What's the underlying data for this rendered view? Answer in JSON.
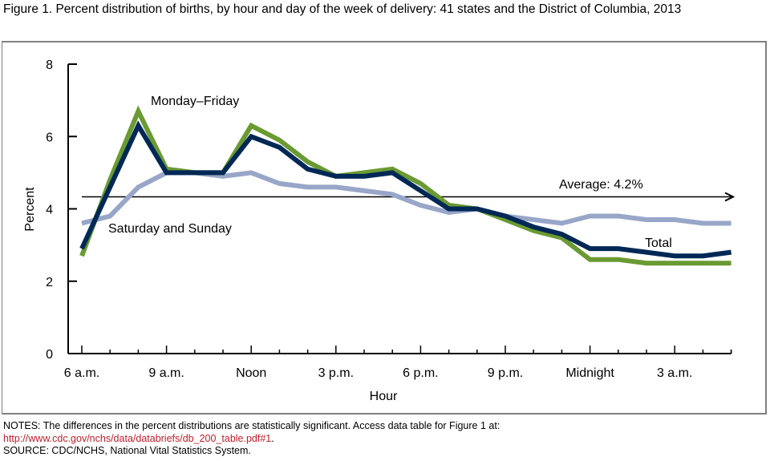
{
  "title": "Figure 1. Percent distribution of births, by hour and day of the week of delivery: 41 states and the District of Columbia, 2013",
  "notes": {
    "line1": "NOTES: The differences in the percent distributions are statistically significant. Access data table for Figure 1 at:",
    "link": "http://www.cdc.gov/nchs/data/databriefs/db_200_table.pdf#1",
    "link_suffix": ".",
    "source": "SOURCE: CDC/NCHS, National Vital Statistics System."
  },
  "colors": {
    "total": "#002856",
    "monday_friday": "#6a9a32",
    "saturday_sunday": "#98a6c8",
    "average": "#000000",
    "link": "#c0202a"
  },
  "chart_data": {
    "type": "line",
    "title": "Figure 1. Percent distribution of births, by hour and day of the week of delivery: 41 states and the District of Columbia, 2013",
    "xlabel": "Hour",
    "ylabel": "Percent",
    "ylim": [
      0,
      8
    ],
    "yticks": [
      0,
      2,
      4,
      6,
      8
    ],
    "x": [
      "6 a.m.",
      "7 a.m.",
      "8 a.m.",
      "9 a.m.",
      "10 a.m.",
      "11 a.m.",
      "Noon",
      "1 p.m.",
      "2 p.m.",
      "3 p.m.",
      "4 p.m.",
      "5 p.m.",
      "6 p.m.",
      "7 p.m.",
      "8 p.m.",
      "9 p.m.",
      "10 p.m.",
      "11 p.m.",
      "Midnight",
      "1 a.m.",
      "2 a.m.",
      "3 a.m.",
      "4 a.m.",
      "5 a.m."
    ],
    "xtick_labels": [
      {
        "index": 0,
        "label": "6 a.m."
      },
      {
        "index": 3,
        "label": "9 a.m."
      },
      {
        "index": 6,
        "label": "Noon"
      },
      {
        "index": 9,
        "label": "3 p.m."
      },
      {
        "index": 12,
        "label": "6 p.m."
      },
      {
        "index": 15,
        "label": "9 p.m."
      },
      {
        "index": 18,
        "label": "Midnight"
      },
      {
        "index": 21,
        "label": "3 a.m."
      }
    ],
    "series": [
      {
        "name": "Saturday and Sunday",
        "key": "saturday_sunday",
        "values": [
          3.6,
          3.8,
          4.6,
          5.0,
          5.0,
          4.9,
          5.0,
          4.7,
          4.6,
          4.6,
          4.5,
          4.4,
          4.1,
          3.9,
          4.0,
          3.8,
          3.7,
          3.6,
          3.8,
          3.8,
          3.7,
          3.7,
          3.6,
          3.6
        ]
      },
      {
        "name": "Monday–Friday",
        "key": "monday_friday",
        "values": [
          2.7,
          4.8,
          6.7,
          5.1,
          5.0,
          5.0,
          6.3,
          5.9,
          5.3,
          4.9,
          5.0,
          5.1,
          4.7,
          4.1,
          4.0,
          3.7,
          3.4,
          3.2,
          2.6,
          2.6,
          2.5,
          2.5,
          2.5,
          2.5
        ]
      },
      {
        "name": "Total",
        "key": "total",
        "values": [
          2.9,
          4.6,
          6.3,
          5.0,
          5.0,
          5.0,
          6.0,
          5.7,
          5.1,
          4.9,
          4.9,
          5.0,
          4.5,
          4.0,
          4.0,
          3.8,
          3.5,
          3.3,
          2.9,
          2.9,
          2.8,
          2.7,
          2.7,
          2.8
        ]
      }
    ],
    "average": {
      "value": 4.2,
      "label": "Average: 4.2%"
    },
    "annotations": [
      {
        "text": "Monday–Friday",
        "series": "monday_friday"
      },
      {
        "text": "Saturday and Sunday",
        "series": "saturday_sunday"
      },
      {
        "text": "Total",
        "series": "total"
      }
    ],
    "grid": false,
    "legend": "none (inline labels)"
  }
}
